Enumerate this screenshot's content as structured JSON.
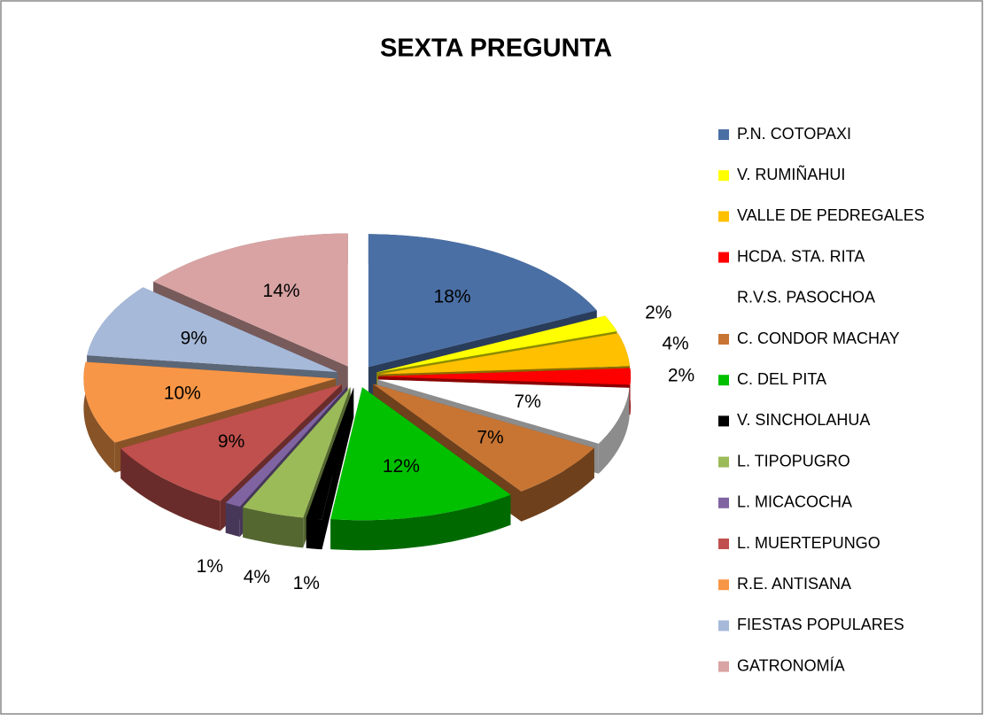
{
  "chart_data": {
    "type": "pie",
    "title": "SEXTA PREGUNTA",
    "categories": [
      "P.N. COTOPAXI",
      "V. RUMIÑAHUI",
      "VALLE DE PEDREGALES",
      "HCDA. STA. RITA",
      "R.V.S. PASOCHOA",
      "C. CONDOR MACHAY",
      "C. DEL PITA",
      "V. SINCHOLAHUA",
      "L. TIPOPUGRO",
      "L. MICACOCHA",
      "L. MUERTEPUNGO",
      "R.E. ANTISANA",
      "FIESTAS POPULARES",
      "GATRONOMÍA"
    ],
    "values": [
      18,
      2,
      4,
      2,
      7,
      7,
      12,
      1,
      4,
      1,
      9,
      10,
      9,
      14
    ],
    "value_labels": [
      "18%",
      "2%",
      "4%",
      "2%",
      "7%",
      "7%",
      "12%",
      "1%",
      "4%",
      "1%",
      "9%",
      "10%",
      "9%",
      "14%"
    ],
    "colors": [
      "#4a6fa5",
      "#ffff00",
      "#ffc000",
      "#ff0000",
      "#ffffff",
      "#c87533",
      "#00c000",
      "#000000",
      "#9bbb59",
      "#8064a2",
      "#c0504d",
      "#f79646",
      "#a6b9d9",
      "#d9a3a3"
    ],
    "legend": "right"
  }
}
